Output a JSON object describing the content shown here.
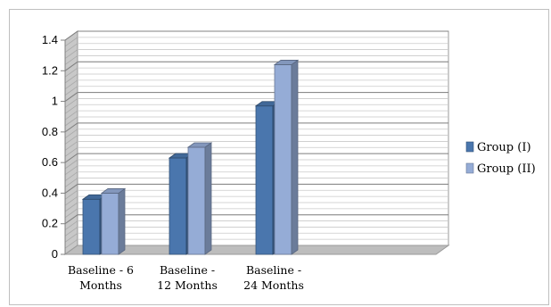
{
  "chart_data": {
    "type": "bar",
    "title": "",
    "xlabel": "",
    "ylabel": "",
    "categories": [
      [
        "Baseline - 6",
        "Months"
      ],
      [
        "Baseline -",
        "12 Months"
      ],
      [
        "Baseline -",
        "24 Months"
      ]
    ],
    "series": [
      {
        "name": "Group (I)",
        "values": [
          0.36,
          0.63,
          0.97
        ],
        "color": "#4a76ad"
      },
      {
        "name": "Group (II)",
        "values": [
          0.4,
          0.7,
          1.24
        ],
        "color": "#95acd6"
      }
    ],
    "ylim": [
      0,
      1.4
    ],
    "yticks": [
      "0",
      "0.2",
      "0.4",
      "0.6",
      "0.8",
      "1",
      "1.2",
      "1.4"
    ],
    "legend_position": "right",
    "grid": true,
    "style": "3d"
  }
}
